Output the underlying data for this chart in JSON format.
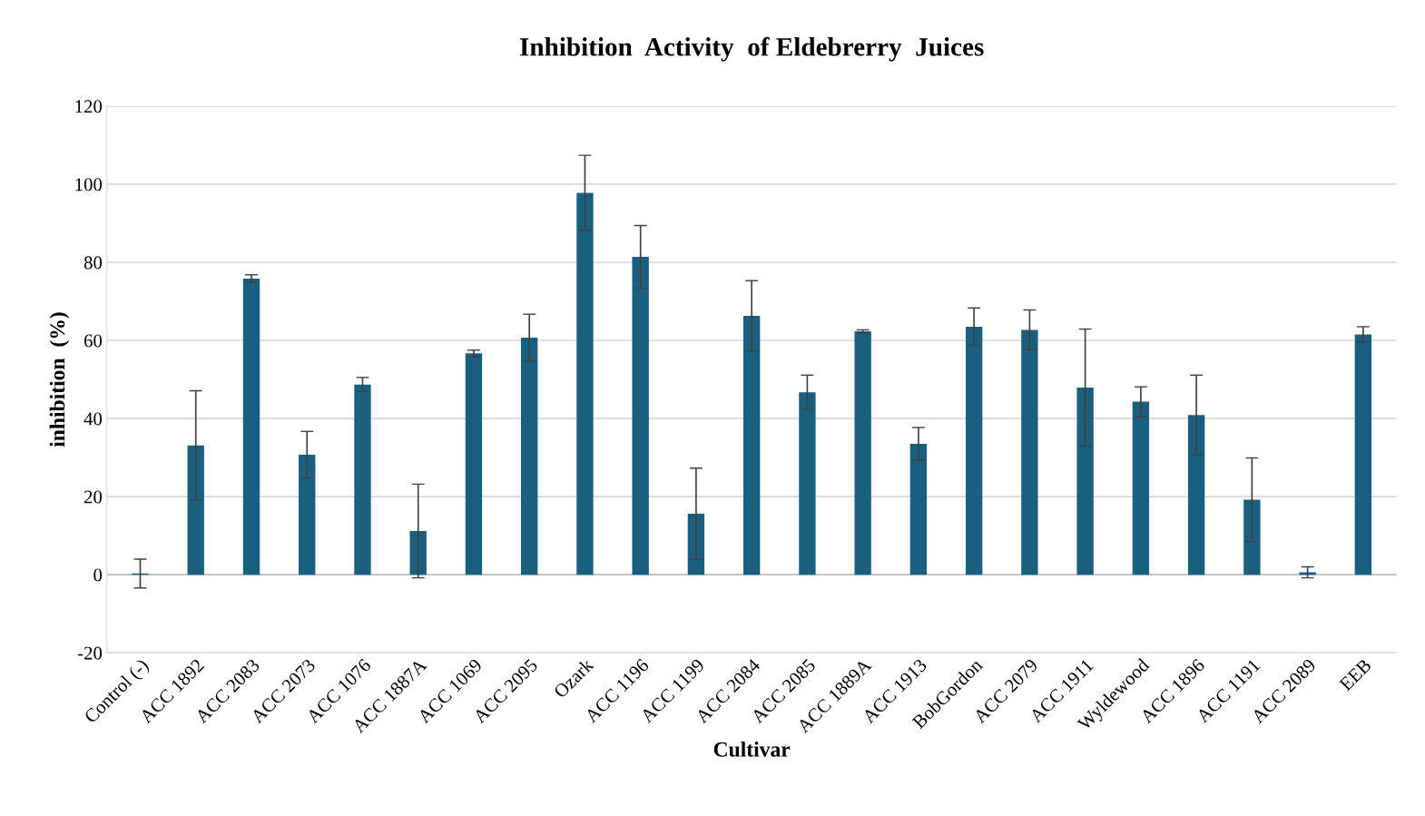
{
  "chart_data": {
    "type": "bar",
    "title": "Inhibition  Activity  of Eldebrerry  Juices",
    "xlabel": "Cultivar",
    "ylabel": "inhibition  (%)",
    "categories": [
      "Control (-)",
      "ACC 1892",
      "ACC 2083",
      "ACC 2073",
      "ACC 1076",
      "ACC 1887A",
      "ACC 1069",
      "ACC 2095",
      "Ozark",
      "ACC 1196",
      "ACC 1199",
      "ACC 2084",
      "ACC 2085",
      "ACC 1889A",
      "ACC 1913",
      "BobGordon",
      "ACC 2079",
      "ACC 1911",
      "Wyldewood",
      "ACC 1896",
      "ACC 1191",
      "ACC 2089",
      "EEB"
    ],
    "values": [
      0.3,
      33.1,
      75.8,
      30.7,
      48.7,
      11.2,
      56.7,
      60.7,
      97.8,
      81.4,
      15.6,
      66.3,
      46.7,
      62.3,
      33.5,
      63.5,
      62.7,
      47.9,
      44.3,
      40.9,
      19.2,
      0.6,
      61.5
    ],
    "errors": [
      3.7,
      14,
      1,
      6,
      1.8,
      12,
      0.8,
      6,
      9.6,
      8,
      11.7,
      9,
      4.4,
      0.4,
      4.2,
      4.8,
      5.1,
      15,
      3.8,
      10.2,
      10.7,
      1.4,
      2
    ],
    "color": "#1a5f80",
    "ylim": [
      -20,
      120
    ],
    "yticks": [
      -20,
      0,
      20,
      40,
      60,
      80,
      100,
      120
    ],
    "grid": "y"
  }
}
